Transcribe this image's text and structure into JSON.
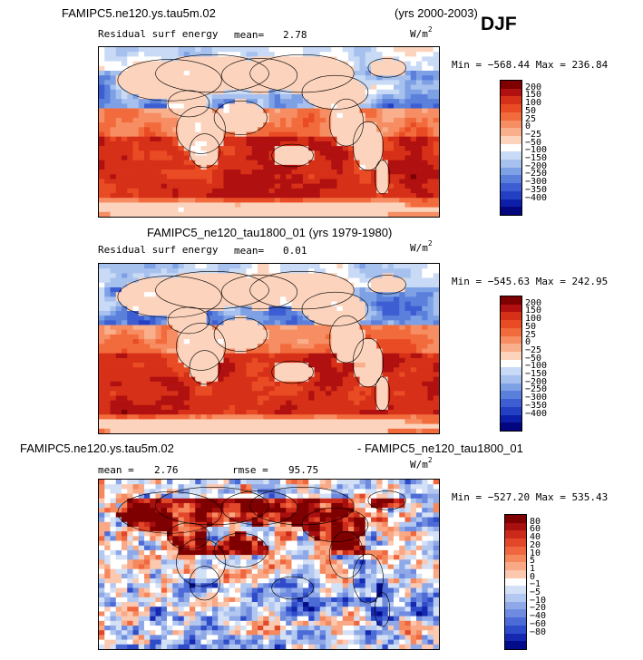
{
  "page": {
    "season": "DJF"
  },
  "panels": [
    {
      "title_left": "FAMIPC5.ne120.ys.tau5m.02",
      "title_right": "(yrs 2000-2003)",
      "variable": "Residual surf energy",
      "mean_label": "mean=",
      "mean_value": "2.78",
      "units_base": "W/m",
      "units_exp": "2",
      "minmax": "Min = −568.44  Max = 236.84",
      "scheme": "model",
      "colorbar": {
        "labels": [
          "200",
          "150",
          "100",
          "50",
          "25",
          "0",
          "−25",
          "−50",
          "−100",
          "−150",
          "−200",
          "−250",
          "−300",
          "−350",
          "−400"
        ],
        "colors": [
          "#7f0000",
          "#b01010",
          "#d63018",
          "#e94c24",
          "#f26b3c",
          "#f78d62",
          "#f9ae8c",
          "#fcd3bd",
          "#ffffff",
          "#c8daf5",
          "#a7c1ef",
          "#7ea1e6",
          "#5a80dc",
          "#3c5ed2",
          "#2340c4",
          "#0d1fa9",
          "#03067e"
        ]
      }
    },
    {
      "title_left": "FAMIPC5_ne120_tau1800_01 (yrs 1979-1980)",
      "variable": "Residual surf energy",
      "mean_label": "mean=",
      "mean_value": "0.01",
      "units_base": "W/m",
      "units_exp": "2",
      "minmax": "Min = −545.63  Max = 242.95",
      "scheme": "model2",
      "colorbar": {
        "labels": [
          "200",
          "150",
          "100",
          "50",
          "25",
          "0",
          "−25",
          "−50",
          "−100",
          "−150",
          "−200",
          "−250",
          "−300",
          "−350",
          "−400"
        ],
        "colors": [
          "#7f0000",
          "#b01010",
          "#d63018",
          "#e94c24",
          "#f26b3c",
          "#f78d62",
          "#f9ae8c",
          "#fcd3bd",
          "#ffffff",
          "#c8daf5",
          "#a7c1ef",
          "#7ea1e6",
          "#5a80dc",
          "#3c5ed2",
          "#2340c4",
          "#0d1fa9",
          "#03067e"
        ]
      }
    },
    {
      "title_left": "FAMIPC5.ne120.ys.tau5m.02",
      "title_right": "- FAMIPC5_ne120_tau1800_01",
      "mean_label": "mean =",
      "mean_value": "2.76",
      "rmse_label": "rmse =",
      "rmse_value": "95.75",
      "units_base": "W/m",
      "units_exp": "2",
      "minmax": "Min = −527.20  Max = 535.43",
      "scheme": "diff",
      "colorbar": {
        "labels": [
          "80",
          "60",
          "40",
          "20",
          "10",
          "5",
          "1",
          "0",
          "−1",
          "−5",
          "−10",
          "−20",
          "−40",
          "−60",
          "−80"
        ],
        "colors": [
          "#7f0000",
          "#a80f0f",
          "#cb2a1b",
          "#e2472a",
          "#f0663f",
          "#f6885e",
          "#f9a986",
          "#fcc8b0",
          "#ffffff",
          "#d3e0f6",
          "#b2c8f0",
          "#8fa9e8",
          "#6e8be0",
          "#4d6bd6",
          "#2e4bc9",
          "#1528b0",
          "#020c8a"
        ]
      }
    }
  ]
}
